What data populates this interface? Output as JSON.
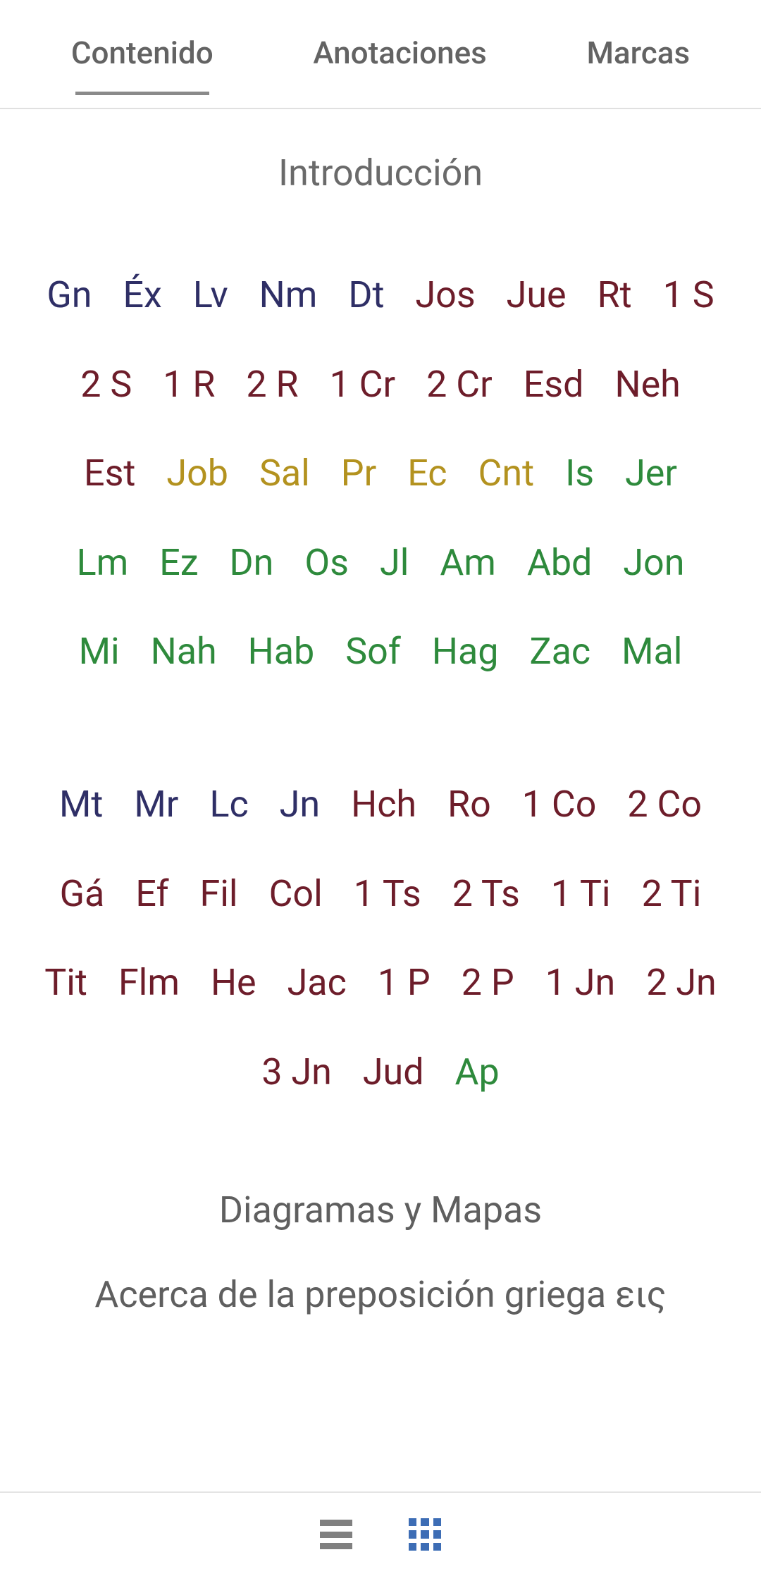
{
  "tabs": {
    "contenido": "Contenido",
    "anotaciones": "Anotaciones",
    "marcas": "Marcas"
  },
  "intro": "Introducción",
  "colors": {
    "navy": "#2f2f66",
    "maroon": "#6d1d2a",
    "gold": "#b3921f",
    "green": "#2e8a3c"
  },
  "ot_books": [
    {
      "abbr": "Gn",
      "c": "navy"
    },
    {
      "abbr": "Éx",
      "c": "navy"
    },
    {
      "abbr": "Lv",
      "c": "navy"
    },
    {
      "abbr": "Nm",
      "c": "navy"
    },
    {
      "abbr": "Dt",
      "c": "navy"
    },
    {
      "abbr": "Jos",
      "c": "maroon"
    },
    {
      "abbr": "Jue",
      "c": "maroon"
    },
    {
      "abbr": "Rt",
      "c": "maroon"
    },
    {
      "abbr": "1 S",
      "c": "maroon"
    },
    {
      "abbr": "2 S",
      "c": "maroon"
    },
    {
      "abbr": "1 R",
      "c": "maroon"
    },
    {
      "abbr": "2 R",
      "c": "maroon"
    },
    {
      "abbr": "1 Cr",
      "c": "maroon"
    },
    {
      "abbr": "2 Cr",
      "c": "maroon"
    },
    {
      "abbr": "Esd",
      "c": "maroon"
    },
    {
      "abbr": "Neh",
      "c": "maroon"
    },
    {
      "abbr": "Est",
      "c": "maroon"
    },
    {
      "abbr": "Job",
      "c": "gold"
    },
    {
      "abbr": "Sal",
      "c": "gold"
    },
    {
      "abbr": "Pr",
      "c": "gold"
    },
    {
      "abbr": "Ec",
      "c": "gold"
    },
    {
      "abbr": "Cnt",
      "c": "gold"
    },
    {
      "abbr": "Is",
      "c": "green"
    },
    {
      "abbr": "Jer",
      "c": "green"
    },
    {
      "abbr": "Lm",
      "c": "green"
    },
    {
      "abbr": "Ez",
      "c": "green"
    },
    {
      "abbr": "Dn",
      "c": "green"
    },
    {
      "abbr": "Os",
      "c": "green"
    },
    {
      "abbr": "Jl",
      "c": "green"
    },
    {
      "abbr": "Am",
      "c": "green"
    },
    {
      "abbr": "Abd",
      "c": "green"
    },
    {
      "abbr": "Jon",
      "c": "green"
    },
    {
      "abbr": "Mi",
      "c": "green"
    },
    {
      "abbr": "Nah",
      "c": "green"
    },
    {
      "abbr": "Hab",
      "c": "green"
    },
    {
      "abbr": "Sof",
      "c": "green"
    },
    {
      "abbr": "Hag",
      "c": "green"
    },
    {
      "abbr": "Zac",
      "c": "green"
    },
    {
      "abbr": "Mal",
      "c": "green"
    }
  ],
  "nt_books": [
    {
      "abbr": "Mt",
      "c": "navy"
    },
    {
      "abbr": "Mr",
      "c": "navy"
    },
    {
      "abbr": "Lc",
      "c": "navy"
    },
    {
      "abbr": "Jn",
      "c": "navy"
    },
    {
      "abbr": "Hch",
      "c": "maroon"
    },
    {
      "abbr": "Ro",
      "c": "maroon"
    },
    {
      "abbr": "1 Co",
      "c": "maroon"
    },
    {
      "abbr": "2 Co",
      "c": "maroon"
    },
    {
      "abbr": "Gá",
      "c": "maroon"
    },
    {
      "abbr": "Ef",
      "c": "maroon"
    },
    {
      "abbr": "Fil",
      "c": "maroon"
    },
    {
      "abbr": "Col",
      "c": "maroon"
    },
    {
      "abbr": "1 Ts",
      "c": "maroon"
    },
    {
      "abbr": "2 Ts",
      "c": "maroon"
    },
    {
      "abbr": "1 Ti",
      "c": "maroon"
    },
    {
      "abbr": "2 Ti",
      "c": "maroon"
    },
    {
      "abbr": "Tit",
      "c": "maroon"
    },
    {
      "abbr": "Flm",
      "c": "maroon"
    },
    {
      "abbr": "He",
      "c": "maroon"
    },
    {
      "abbr": "Jac",
      "c": "maroon"
    },
    {
      "abbr": "1 P",
      "c": "maroon"
    },
    {
      "abbr": "2 P",
      "c": "maroon"
    },
    {
      "abbr": "1 Jn",
      "c": "maroon"
    },
    {
      "abbr": "2 Jn",
      "c": "maroon"
    },
    {
      "abbr": "3 Jn",
      "c": "maroon"
    },
    {
      "abbr": "Jud",
      "c": "maroon"
    },
    {
      "abbr": "Ap",
      "c": "green"
    }
  ],
  "appendix": {
    "diagrams": "Diagramas y Mapas",
    "greek": "Acerca de la preposición griega εις"
  }
}
